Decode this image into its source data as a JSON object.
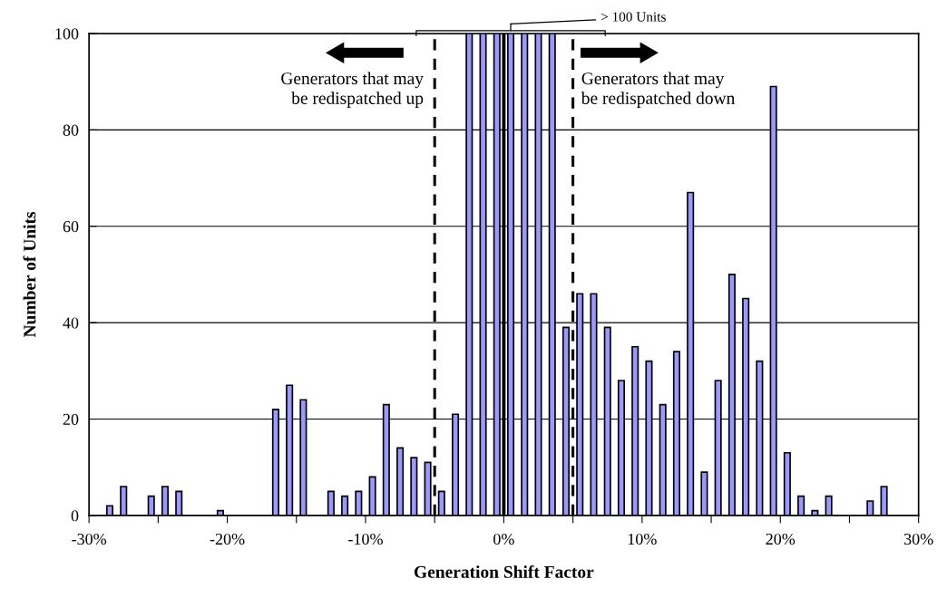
{
  "chart_data": {
    "type": "bar",
    "xlabel": "Generation Shift Factor",
    "ylabel": "Number of Units",
    "x": [
      -28.5,
      -27.5,
      -25.5,
      -24.5,
      -23.5,
      -20.5,
      -16.5,
      -15.5,
      -14.5,
      -12.5,
      -11.5,
      -10.5,
      -9.5,
      -8.5,
      -7.5,
      -6.5,
      -5.5,
      -4.5,
      -3.5,
      -2.5,
      -1.5,
      -0.5,
      0.5,
      1.5,
      2.5,
      3.5,
      4.5,
      5.5,
      6.5,
      7.5,
      8.5,
      9.5,
      10.5,
      11.5,
      12.5,
      13.5,
      14.5,
      15.5,
      16.5,
      17.5,
      18.5,
      19.5,
      20.5,
      21.5,
      22.5,
      23.5,
      26.5,
      27.5
    ],
    "values": [
      2,
      6,
      4,
      6,
      5,
      1,
      22,
      27,
      24,
      5,
      4,
      5,
      8,
      23,
      14,
      12,
      11,
      5,
      21,
      100,
      100,
      100,
      100,
      100,
      100,
      100,
      39,
      46,
      46,
      39,
      28,
      35,
      32,
      23,
      34,
      67,
      9,
      28,
      50,
      45,
      32,
      89,
      13,
      4,
      1,
      4,
      3,
      6
    ],
    "color": "#9999ff",
    "xlim": [
      -30,
      30
    ],
    "xticks": [
      {
        "value": -30,
        "label": "-30%"
      },
      {
        "value": -25,
        "label": null
      },
      {
        "value": -20,
        "label": "-20%"
      },
      {
        "value": -15,
        "label": null
      },
      {
        "value": -10,
        "label": "-10%"
      },
      {
        "value": -5,
        "label": null
      },
      {
        "value": 0,
        "label": "0%"
      },
      {
        "value": 5,
        "label": null
      },
      {
        "value": 10,
        "label": "10%"
      },
      {
        "value": 15,
        "label": null
      },
      {
        "value": 20,
        "label": "20%"
      },
      {
        "value": 25,
        "label": null
      },
      {
        "value": 30,
        "label": "30%"
      }
    ],
    "ylim": [
      0,
      100
    ],
    "yticks": [
      0,
      20,
      40,
      60,
      80,
      100
    ],
    "grid": "y",
    "ref_lines": [
      {
        "axis": "x",
        "value": -5,
        "label": null,
        "line_style": "dashed",
        "color": "#000000"
      },
      {
        "axis": "x",
        "value": 5,
        "label": null,
        "line_style": "dashed",
        "color": "#000000"
      },
      {
        "axis": "x",
        "value": 0,
        "label": null,
        "line_style": "solid",
        "color": "#000000"
      }
    ],
    "annotations": [
      "Generators that may\nbe redispatched up",
      "Generators that may\nbe redispatched down",
      "> 100 Units"
    ]
  }
}
